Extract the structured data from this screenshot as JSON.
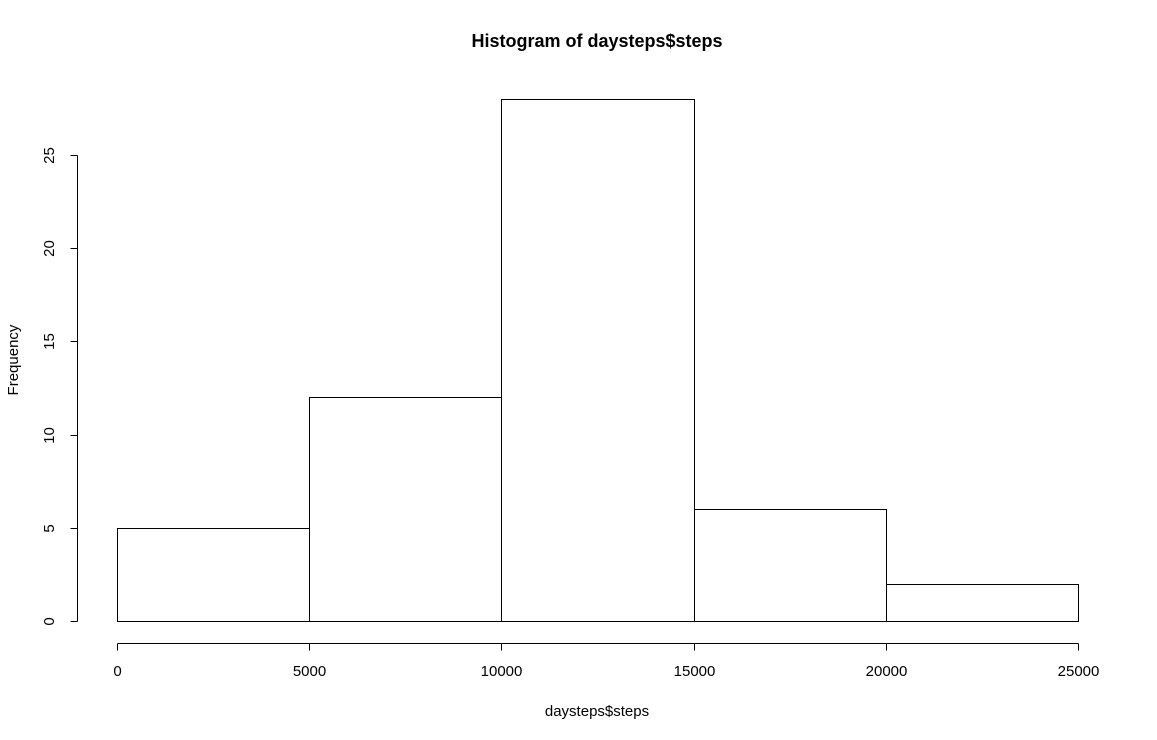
{
  "chart_data": {
    "type": "bar",
    "title": "Histogram of daysteps$steps",
    "xlabel": "daysteps$steps",
    "ylabel": "Frequency",
    "bins": [
      {
        "from": 0,
        "to": 5000,
        "count": 5
      },
      {
        "from": 5000,
        "to": 10000,
        "count": 12
      },
      {
        "from": 10000,
        "to": 15000,
        "count": 28
      },
      {
        "from": 15000,
        "to": 20000,
        "count": 6
      },
      {
        "from": 20000,
        "to": 25000,
        "count": 2
      }
    ],
    "xlim": [
      0,
      25000
    ],
    "ylim": [
      0,
      28
    ],
    "x_ticks": [
      0,
      5000,
      10000,
      15000,
      20000,
      25000
    ],
    "x_tick_labels": [
      "0",
      "5000",
      "10000",
      "15000",
      "20000",
      "25000"
    ],
    "y_ticks": [
      0,
      5,
      10,
      15,
      20,
      25
    ],
    "y_tick_labels": [
      "0",
      "5",
      "10",
      "15",
      "20",
      "25"
    ],
    "grid": false,
    "colors": {
      "bar_fill": "#ffffff",
      "bar_stroke": "#000000"
    }
  }
}
